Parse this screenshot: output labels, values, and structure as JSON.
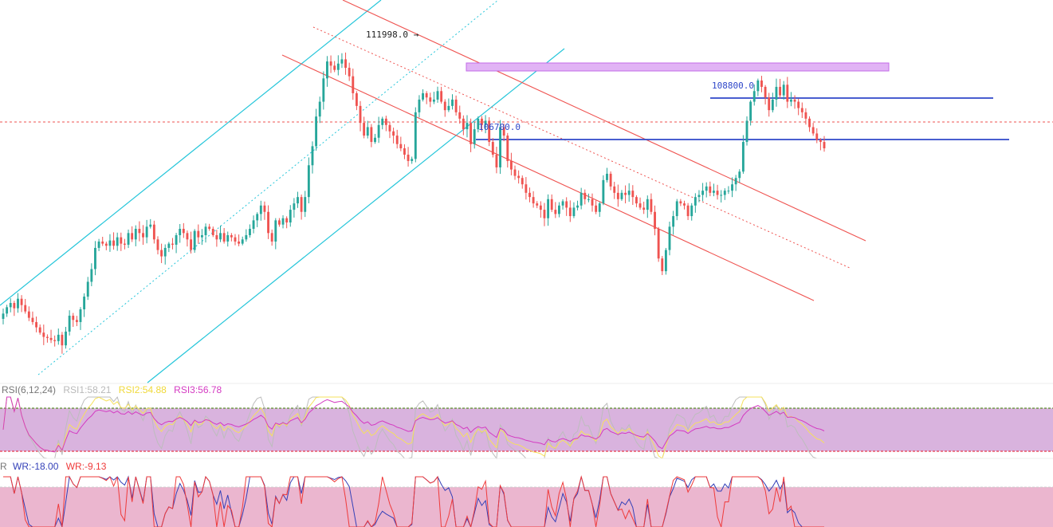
{
  "chart_data": [
    {
      "type": "candlestick",
      "title": "",
      "annotations": {
        "high_marker": "111998.0 →",
        "resistance_label": "108800.0",
        "support_label": "106700.0"
      },
      "levels": {
        "high": 111998.0,
        "resistance": 108800.0,
        "support": 106700.0,
        "current_price_line": 107600.0,
        "supply_zone": [
          110400,
          110800
        ]
      },
      "y_range": [
        96500,
        114600
      ],
      "trend_channels": {
        "ascending_color": "#26c6da",
        "descending_color": "#ef5350"
      },
      "colors": {
        "up": "#26a69a",
        "down": "#ef5350",
        "zone": "#e1b3f5",
        "zone_border": "#c36be8",
        "level_line": "#2f47c9",
        "price_line": "#ef5350"
      },
      "closes": [
        99800,
        100100,
        100300,
        100050,
        100500,
        100200,
        99900,
        99600,
        99400,
        99150,
        98900,
        98700,
        98650,
        98550,
        98500,
        98800,
        98300,
        98950,
        99700,
        99500,
        99400,
        100000,
        100600,
        101300,
        101900,
        102900,
        103200,
        103100,
        103000,
        103250,
        103000,
        103400,
        103100,
        103050,
        103600,
        103300,
        103800,
        103600,
        103400,
        103900,
        104000,
        103300,
        102800,
        102500,
        102900,
        103100,
        103050,
        103500,
        103800,
        103600,
        103300,
        102800,
        103700,
        103400,
        103500,
        103900,
        103800,
        103500,
        103300,
        103600,
        103200,
        103500,
        103400,
        103200,
        103100,
        103300,
        103500,
        103800,
        104200,
        104500,
        104900,
        104600,
        103600,
        103200,
        104200,
        104000,
        104300,
        104100,
        104700,
        105000,
        105300,
        104600,
        105300,
        106800,
        107700,
        109100,
        109800,
        110900,
        111700,
        111500,
        111300,
        111600,
        111800,
        111400,
        111000,
        110200,
        109600,
        108800,
        108200,
        108600,
        107900,
        108100,
        108700,
        109000,
        108700,
        108400,
        108200,
        107800,
        107600,
        107300,
        107000,
        107100,
        109300,
        109900,
        110200,
        110000,
        109800,
        109900,
        110300,
        109800,
        109400,
        109600,
        109900,
        109300,
        109000,
        108500,
        108800,
        107800,
        108500,
        109000,
        108700,
        108900,
        107900,
        107300,
        106700,
        108600,
        108200,
        107000,
        106600,
        106300,
        106200,
        105900,
        105500,
        105300,
        105000,
        104900,
        104700,
        104300,
        105200,
        104700,
        104500,
        104900,
        105100,
        104800,
        104400,
        104800,
        104900,
        105500,
        105200,
        105200,
        104900,
        104600,
        105000,
        106100,
        106400,
        105800,
        105500,
        105200,
        105500,
        105400,
        105600,
        105300,
        105000,
        104800,
        104700,
        105200,
        104600,
        103800,
        102400,
        101800,
        102800,
        103900,
        104400,
        105100,
        105000,
        104900,
        104400,
        104900,
        105300,
        105400,
        105600,
        105800,
        105500,
        105600,
        105400,
        105400,
        105600,
        105600,
        105900,
        106200,
        106500,
        107900,
        108900,
        109800,
        110300,
        110800,
        110500,
        110000,
        109400,
        109900,
        110500,
        110100,
        110600,
        109800,
        109900,
        109800,
        109500,
        109300,
        109000,
        108600,
        108300,
        108000,
        107900,
        107600
      ]
    },
    {
      "type": "line",
      "indicator": "RSI",
      "label": "RSI(6,12,24)",
      "series": [
        {
          "name": "RSI1",
          "label": "RSI1:58.21",
          "last": 58.21,
          "color": "#bdbdbd"
        },
        {
          "name": "RSI2",
          "label": "RSI2:54.88",
          "last": 54.88,
          "color": "#f5e15c"
        },
        {
          "name": "RSI3",
          "label": "RSI3:56.78",
          "last": 56.78,
          "color": "#d43bc2"
        }
      ],
      "y_range": [
        20,
        80
      ],
      "overbought": 70,
      "oversold": 30,
      "band_color": "#d9b3de"
    },
    {
      "type": "line",
      "indicator": "WR",
      "label": "R",
      "series": [
        {
          "name": "WR1",
          "label": "WR:-18.00",
          "last": -18.0,
          "color": "#3340b8"
        },
        {
          "name": "WR2",
          "label": "WR:-9.13",
          "last": -9.13,
          "color": "#ef3b3b"
        }
      ],
      "y_range": [
        -100,
        0
      ],
      "upper_level": -20,
      "band_color": "#ebb6cf"
    }
  ]
}
